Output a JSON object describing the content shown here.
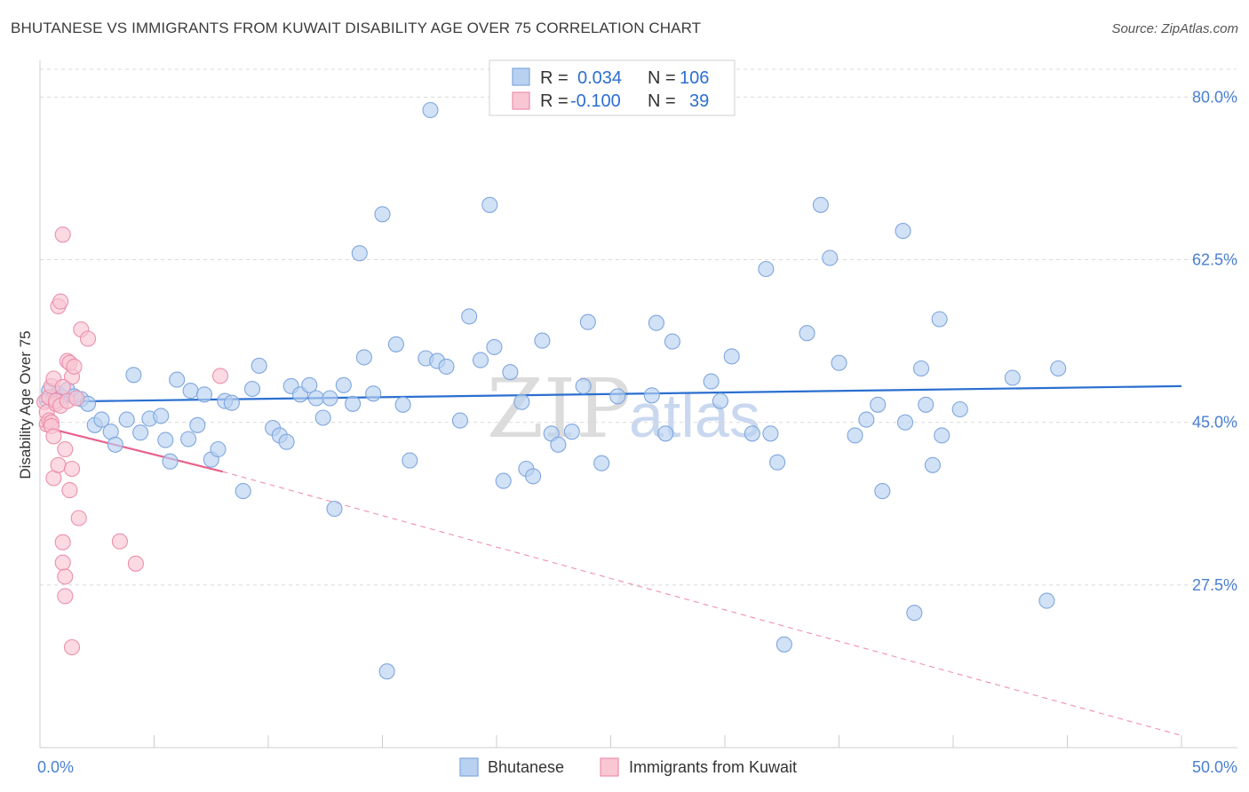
{
  "title": "BHUTANESE VS IMMIGRANTS FROM KUWAIT DISABILITY AGE OVER 75 CORRELATION CHART",
  "source": "Source: ZipAtlas.com",
  "watermark": {
    "zip": "ZIP",
    "atlas": "atlas"
  },
  "legend": {
    "rows": [
      {
        "r_label": "R =",
        "r_value": "0.034",
        "n_label": "N =",
        "n_value": "106"
      },
      {
        "r_label": "R =",
        "r_value": "-0.100",
        "n_label": "N =",
        "n_value": "39"
      }
    ]
  },
  "bottom_legend": [
    "Bhutanese",
    "Immigrants from Kuwait"
  ],
  "colors": {
    "blue_fill": "#b8d1f1",
    "blue_stroke": "#7fa7de",
    "blue_line": "#2a6fd0",
    "pink_fill": "#f9c6d4",
    "pink_stroke": "#ec8fab",
    "pink_line": "#e8608c",
    "grid": "#d9d9d9",
    "axis_text": "#4a7fd0"
  },
  "chart_data": {
    "type": "scatter",
    "title": "BHUTANESE VS IMMIGRANTS FROM KUWAIT DISABILITY AGE OVER 75 CORRELATION CHART",
    "xlabel": "",
    "ylabel": "Disability Age Over 75",
    "xlim": [
      0,
      50
    ],
    "ylim": [
      10,
      83
    ],
    "x_tick_labels": [
      "0.0%",
      "50.0%"
    ],
    "y_ticks": [
      27.5,
      45.0,
      62.5,
      80.0
    ],
    "y_tick_labels": [
      "27.5%",
      "45.0%",
      "62.5%",
      "80.0%"
    ],
    "grid": true,
    "series": [
      {
        "name": "Bhutanese",
        "R": 0.034,
        "N": 106,
        "trend": {
          "x0": 0,
          "y0": 47.2,
          "x1": 50,
          "y1": 48.9
        },
        "points": [
          [
            0.3,
            47.4
          ],
          [
            0.4,
            48.4
          ],
          [
            0.6,
            47.6
          ],
          [
            0.8,
            48.1
          ],
          [
            1.0,
            47.7
          ],
          [
            1.2,
            48.5
          ],
          [
            1.5,
            47.8
          ],
          [
            1.8,
            47.5
          ],
          [
            2.1,
            47.0
          ],
          [
            2.4,
            44.7
          ],
          [
            2.7,
            45.3
          ],
          [
            3.1,
            44.0
          ],
          [
            3.3,
            42.6
          ],
          [
            3.8,
            45.3
          ],
          [
            4.1,
            50.1
          ],
          [
            4.4,
            43.9
          ],
          [
            4.8,
            45.4
          ],
          [
            5.3,
            45.7
          ],
          [
            5.5,
            43.1
          ],
          [
            5.7,
            40.8
          ],
          [
            6.0,
            49.6
          ],
          [
            6.5,
            43.2
          ],
          [
            6.6,
            48.4
          ],
          [
            6.9,
            44.7
          ],
          [
            7.2,
            48.0
          ],
          [
            7.5,
            41.0
          ],
          [
            7.8,
            42.1
          ],
          [
            8.1,
            47.3
          ],
          [
            8.4,
            47.1
          ],
          [
            8.9,
            37.6
          ],
          [
            9.3,
            48.6
          ],
          [
            9.6,
            51.1
          ],
          [
            10.2,
            44.4
          ],
          [
            10.5,
            43.6
          ],
          [
            10.8,
            42.9
          ],
          [
            11.0,
            48.9
          ],
          [
            11.4,
            48.0
          ],
          [
            11.8,
            49.0
          ],
          [
            12.1,
            47.6
          ],
          [
            12.4,
            45.5
          ],
          [
            12.7,
            47.6
          ],
          [
            12.9,
            35.7
          ],
          [
            13.3,
            49.0
          ],
          [
            13.7,
            47.0
          ],
          [
            14.0,
            63.2
          ],
          [
            14.2,
            52.0
          ],
          [
            14.6,
            48.1
          ],
          [
            15.0,
            67.4
          ],
          [
            15.2,
            18.2
          ],
          [
            15.6,
            53.4
          ],
          [
            15.9,
            46.9
          ],
          [
            16.2,
            40.9
          ],
          [
            16.9,
            51.9
          ],
          [
            17.1,
            78.6
          ],
          [
            17.4,
            51.6
          ],
          [
            17.8,
            51.0
          ],
          [
            18.4,
            45.2
          ],
          [
            18.8,
            56.4
          ],
          [
            19.3,
            51.7
          ],
          [
            19.7,
            68.4
          ],
          [
            19.9,
            53.1
          ],
          [
            20.3,
            38.7
          ],
          [
            20.6,
            50.4
          ],
          [
            21.1,
            47.2
          ],
          [
            21.3,
            40.0
          ],
          [
            21.6,
            39.2
          ],
          [
            22.0,
            53.8
          ],
          [
            22.4,
            43.8
          ],
          [
            22.7,
            42.6
          ],
          [
            23.3,
            44.0
          ],
          [
            23.8,
            48.9
          ],
          [
            24.0,
            55.8
          ],
          [
            24.6,
            40.6
          ],
          [
            25.3,
            47.8
          ],
          [
            26.8,
            47.9
          ],
          [
            27.0,
            55.7
          ],
          [
            27.4,
            43.8
          ],
          [
            27.7,
            53.7
          ],
          [
            29.4,
            49.4
          ],
          [
            29.8,
            47.3
          ],
          [
            30.3,
            52.1
          ],
          [
            31.2,
            43.8
          ],
          [
            31.8,
            61.5
          ],
          [
            32.0,
            43.8
          ],
          [
            32.3,
            40.7
          ],
          [
            32.6,
            21.1
          ],
          [
            33.6,
            54.6
          ],
          [
            34.2,
            68.4
          ],
          [
            34.6,
            62.7
          ],
          [
            35.0,
            51.4
          ],
          [
            35.7,
            43.6
          ],
          [
            36.2,
            45.3
          ],
          [
            36.7,
            46.9
          ],
          [
            36.9,
            37.6
          ],
          [
            37.8,
            65.6
          ],
          [
            37.9,
            45.0
          ],
          [
            38.3,
            24.5
          ],
          [
            38.6,
            50.8
          ],
          [
            38.8,
            46.9
          ],
          [
            39.1,
            40.4
          ],
          [
            39.4,
            56.1
          ],
          [
            39.5,
            43.6
          ],
          [
            40.3,
            46.4
          ],
          [
            42.6,
            49.8
          ],
          [
            44.1,
            25.8
          ],
          [
            44.6,
            50.8
          ]
        ]
      },
      {
        "name": "Immigrants from Kuwait",
        "R": -0.1,
        "N": 39,
        "trend": {
          "x0": 0,
          "y0": 44.6,
          "x1": 8.0,
          "y1": 39.7,
          "dash_x1": 50,
          "dash_y1": 11.3
        },
        "points": [
          [
            0.2,
            47.2
          ],
          [
            0.3,
            46.1
          ],
          [
            0.3,
            44.8
          ],
          [
            0.4,
            45.2
          ],
          [
            0.4,
            47.7
          ],
          [
            0.5,
            45.0
          ],
          [
            0.5,
            48.9
          ],
          [
            0.5,
            44.6
          ],
          [
            0.6,
            43.5
          ],
          [
            0.6,
            39.0
          ],
          [
            0.6,
            49.7
          ],
          [
            0.7,
            47.0
          ],
          [
            0.7,
            47.3
          ],
          [
            0.8,
            57.5
          ],
          [
            0.8,
            40.4
          ],
          [
            0.9,
            58.0
          ],
          [
            0.9,
            46.8
          ],
          [
            1.0,
            29.9
          ],
          [
            1.0,
            65.2
          ],
          [
            1.0,
            32.1
          ],
          [
            1.1,
            42.1
          ],
          [
            1.1,
            28.4
          ],
          [
            1.1,
            26.3
          ],
          [
            1.2,
            51.6
          ],
          [
            1.2,
            47.3
          ],
          [
            1.3,
            51.4
          ],
          [
            1.3,
            37.7
          ],
          [
            1.4,
            40.0
          ],
          [
            1.4,
            49.9
          ],
          [
            1.4,
            20.8
          ],
          [
            1.5,
            51.0
          ],
          [
            1.6,
            47.6
          ],
          [
            1.7,
            34.7
          ],
          [
            1.8,
            55.0
          ],
          [
            2.1,
            54.0
          ],
          [
            3.5,
            32.2
          ],
          [
            4.2,
            29.8
          ],
          [
            7.9,
            50.0
          ],
          [
            1.0,
            48.8
          ]
        ]
      }
    ]
  }
}
